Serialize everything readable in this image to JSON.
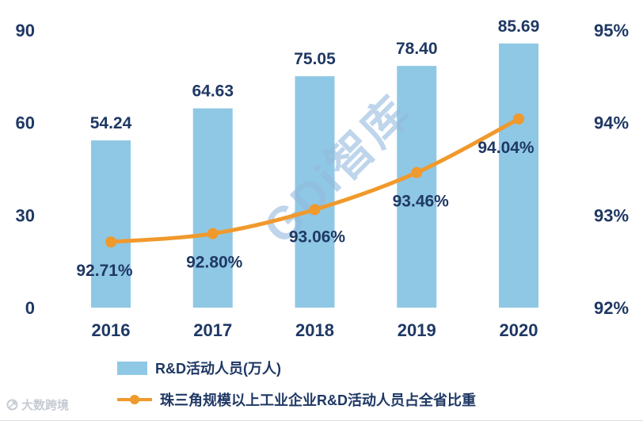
{
  "chart_data": {
    "type": "combo",
    "categories": [
      "2016",
      "2017",
      "2018",
      "2019",
      "2020"
    ],
    "series": [
      {
        "name": "R&D活动人员(万人)",
        "type": "bar",
        "axis": "left",
        "color": "#8FC8E4",
        "values": [
          54.24,
          64.63,
          75.05,
          78.4,
          85.69
        ],
        "labels": [
          "54.24",
          "64.63",
          "75.05",
          "78.40",
          "85.69"
        ]
      },
      {
        "name": "珠三角规模以上工业企业R&D活动人员占全省比重",
        "type": "line",
        "axis": "right",
        "color": "#F0992C",
        "values": [
          92.71,
          92.8,
          93.06,
          93.46,
          94.04
        ],
        "labels": [
          "92.71%",
          "92.80%",
          "93.06%",
          "93.46%",
          "94.04%"
        ]
      }
    ],
    "left_axis": {
      "range": [
        0,
        90
      ],
      "ticks": [
        0,
        30,
        60,
        90
      ],
      "labels": [
        "0",
        "30",
        "60",
        "90"
      ]
    },
    "right_axis": {
      "range": [
        92,
        95
      ],
      "ticks": [
        92,
        93,
        94,
        95
      ],
      "labels": [
        "92%",
        "93%",
        "94%",
        "95%"
      ]
    },
    "legend_position": "bottom",
    "grid": false,
    "title": ""
  },
  "watermarks": {
    "center": "GDi智库",
    "corner": "大数跨境"
  },
  "colors": {
    "bar": "#8FC8E4",
    "line": "#F0992C",
    "text": "#1F3864",
    "watermark": "#93B9DE",
    "brand": "#C6CBD3"
  }
}
